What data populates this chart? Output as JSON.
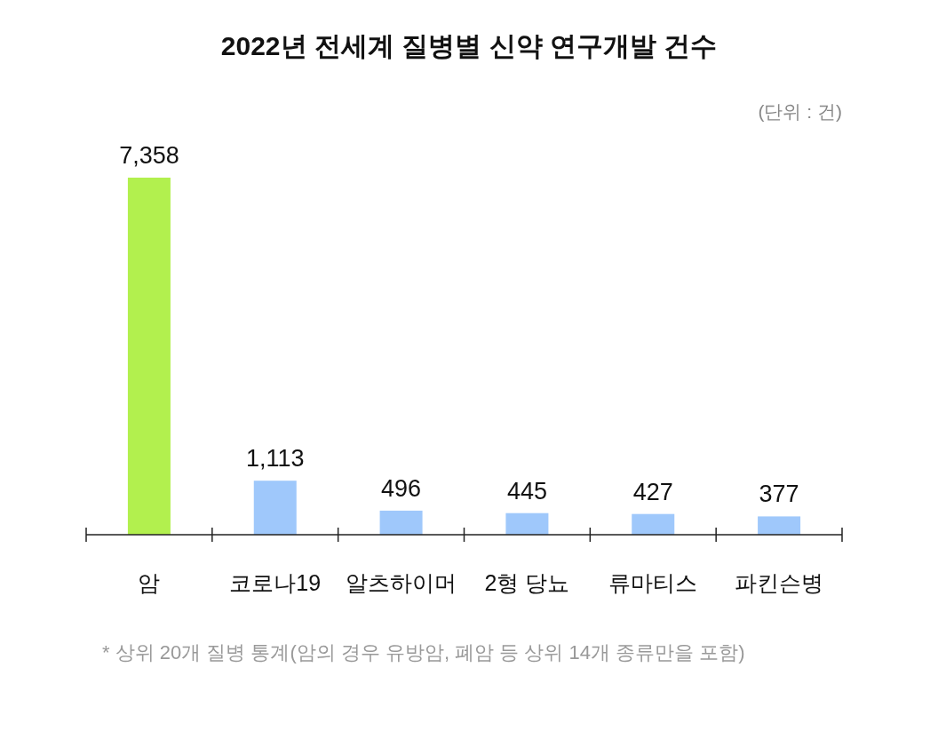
{
  "chart_data": {
    "type": "bar",
    "title": "2022년 전세계 질병별 신약 연구개발 건수",
    "categories": [
      "암",
      "코로나19",
      "알츠하이머",
      "2형 당뇨",
      "류마티스",
      "파킨슨병"
    ],
    "values": [
      7358,
      1113,
      496,
      445,
      427,
      377
    ],
    "colors": [
      "#b2f04e",
      "#9fc8fb",
      "#9fc8fb",
      "#9fc8fb",
      "#9fc8fb",
      "#9fc8fb"
    ],
    "value_labels": [
      "7,358",
      "1,113",
      "496",
      "445",
      "427",
      "377"
    ],
    "tick_labels": "x",
    "annotations": [
      "(단위 : 건)",
      "* 상위 20개 질병 통계(암의 경우 유방암, 폐암 등 상위 14개 종류만을 포함)"
    ]
  }
}
